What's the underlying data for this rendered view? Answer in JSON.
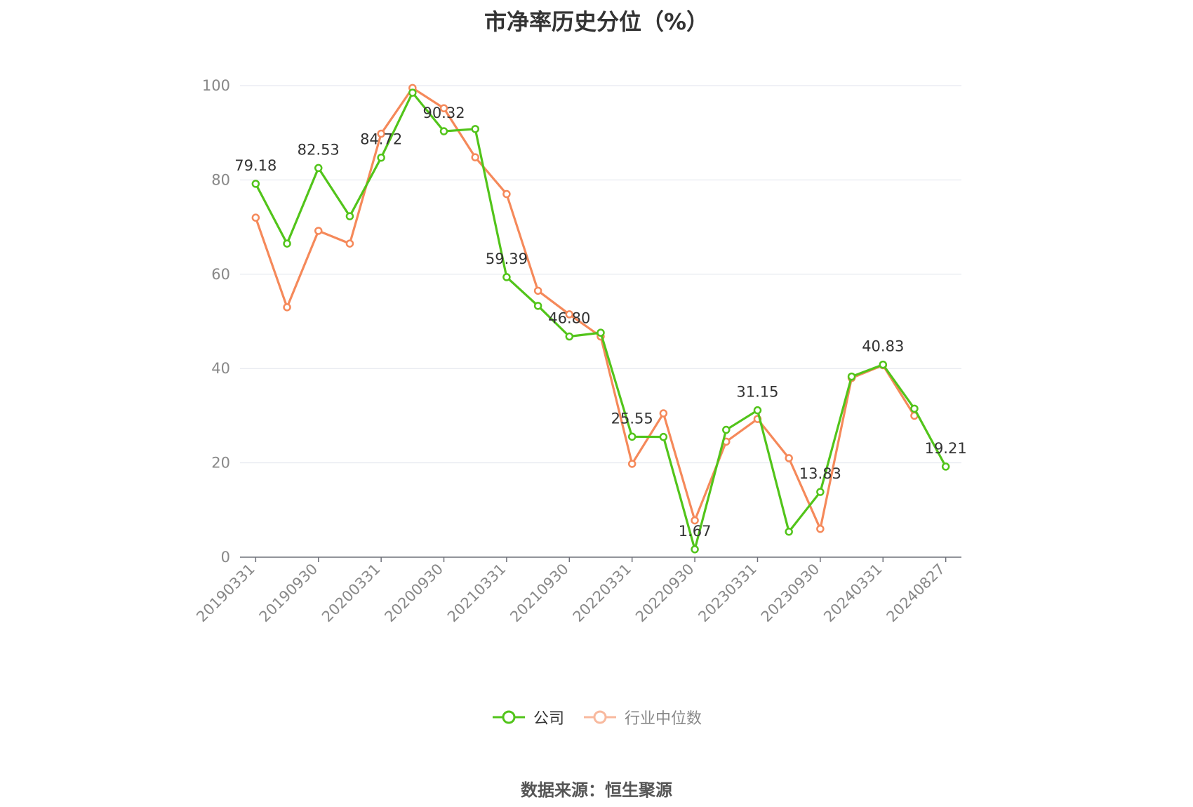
{
  "chart_data": {
    "type": "line",
    "title": "市净率历史分位（%）",
    "source": "数据来源：恒生聚源",
    "ylim": [
      0,
      100
    ],
    "yticks": [
      0,
      20,
      40,
      60,
      80,
      100
    ],
    "x": [
      "20190331",
      "20190630",
      "20190930",
      "20191231",
      "20200331",
      "20200630",
      "20200930",
      "20201231",
      "20210331",
      "20210630",
      "20210930",
      "20211231",
      "20220331",
      "20220630",
      "20220930",
      "20221231",
      "20230331",
      "20230630",
      "20230930",
      "20231231",
      "20240331",
      "20240630",
      "20240827"
    ],
    "xtick_labels": [
      "20190331",
      "20190930",
      "20200331",
      "20200930",
      "20210331",
      "20210930",
      "20220331",
      "20220930",
      "20230331",
      "20230930",
      "20240331",
      "20240827"
    ],
    "grid": true,
    "legend_position": "bottom",
    "series": [
      {
        "name": "公司",
        "color": "#52c41a",
        "values": [
          79.18,
          66.5,
          82.53,
          72.3,
          84.72,
          98.5,
          90.32,
          90.8,
          59.39,
          53.3,
          46.8,
          47.6,
          25.55,
          25.5,
          1.67,
          27.0,
          31.15,
          5.4,
          13.83,
          38.3,
          40.83,
          31.5,
          19.21
        ],
        "labels": [
          "79.18",
          null,
          "82.53",
          null,
          "84.72",
          null,
          "90.32",
          null,
          "59.39",
          null,
          "46.80",
          null,
          "25.55",
          null,
          "1.67",
          null,
          "31.15",
          null,
          "13.83",
          null,
          "40.83",
          null,
          "19.21"
        ]
      },
      {
        "name": "行业中位数",
        "color": "#f5895a",
        "values": [
          72.0,
          53.0,
          69.2,
          66.5,
          89.8,
          99.5,
          95.2,
          84.8,
          77.0,
          56.5,
          51.5,
          46.8,
          19.8,
          30.5,
          7.8,
          24.5,
          29.3,
          21.0,
          6.0,
          38.0,
          40.7,
          30.0,
          null
        ]
      }
    ]
  }
}
